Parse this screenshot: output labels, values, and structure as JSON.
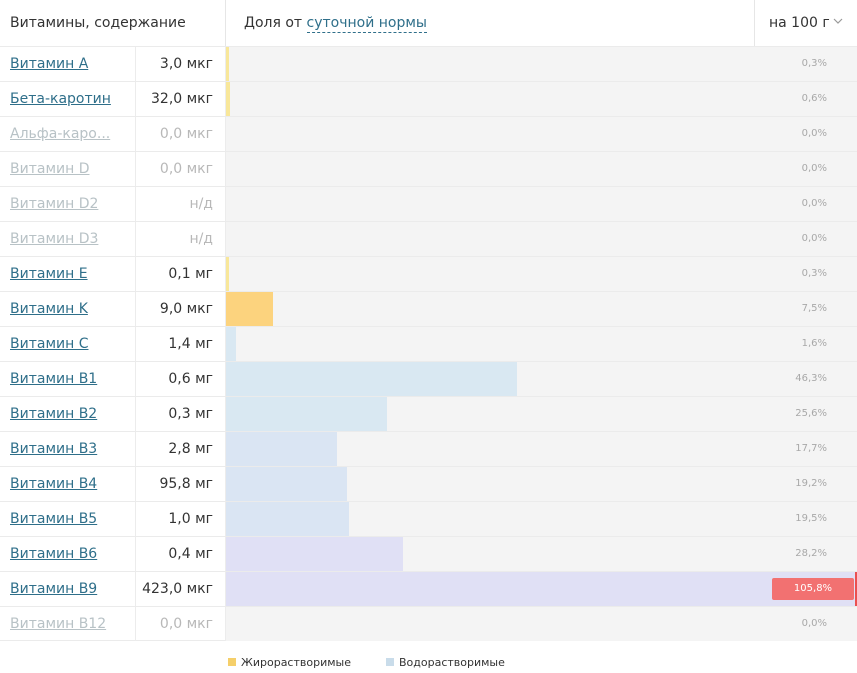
{
  "header": {
    "title": "Витамины, содержание",
    "share_prefix": "Доля от",
    "share_link": "суточной нормы",
    "per_label": "на 100 г"
  },
  "rows": [
    {
      "name": "Витамин A",
      "value": "3,0 мкг",
      "pct_label": "0,3%",
      "pct": 0.3,
      "kind": "fat",
      "dim": false
    },
    {
      "name": "Бета-каротин",
      "value": "32,0 мкг",
      "pct_label": "0,6%",
      "pct": 0.6,
      "kind": "fat",
      "dim": false
    },
    {
      "name": "Альфа-каро...",
      "value": "0,0 мкг",
      "pct_label": "0,0%",
      "pct": 0,
      "kind": "fat",
      "dim": true
    },
    {
      "name": "Витамин D",
      "value": "0,0 мкг",
      "pct_label": "0,0%",
      "pct": 0,
      "kind": "fat",
      "dim": true
    },
    {
      "name": "Витамин D2",
      "value": "н/д",
      "pct_label": "0,0%",
      "pct": 0,
      "kind": "fat",
      "dim": true
    },
    {
      "name": "Витамин D3",
      "value": "н/д",
      "pct_label": "0,0%",
      "pct": 0,
      "kind": "fat",
      "dim": true
    },
    {
      "name": "Витамин E",
      "value": "0,1 мг",
      "pct_label": "0,3%",
      "pct": 0.3,
      "kind": "fat",
      "dim": false
    },
    {
      "name": "Витамин K",
      "value": "9,0 мкг",
      "pct_label": "7,5%",
      "pct": 7.5,
      "kind": "fat-strong",
      "dim": false
    },
    {
      "name": "Витамин C",
      "value": "1,4 мг",
      "pct_label": "1,6%",
      "pct": 1.6,
      "kind": "water",
      "dim": false
    },
    {
      "name": "Витамин B1",
      "value": "0,6 мг",
      "pct_label": "46,3%",
      "pct": 46.3,
      "kind": "water",
      "dim": false
    },
    {
      "name": "Витамин B2",
      "value": "0,3 мг",
      "pct_label": "25,6%",
      "pct": 25.6,
      "kind": "water",
      "dim": false
    },
    {
      "name": "Витамин B3",
      "value": "2,8 мг",
      "pct_label": "17,7%",
      "pct": 17.7,
      "kind": "water2",
      "dim": false
    },
    {
      "name": "Витамин B4",
      "value": "95,8 мг",
      "pct_label": "19,2%",
      "pct": 19.2,
      "kind": "water2",
      "dim": false
    },
    {
      "name": "Витамин B5",
      "value": "1,0 мг",
      "pct_label": "19,5%",
      "pct": 19.5,
      "kind": "water2",
      "dim": false
    },
    {
      "name": "Витамин B6",
      "value": "0,4 мг",
      "pct_label": "28,2%",
      "pct": 28.2,
      "kind": "water3",
      "dim": false
    },
    {
      "name": "Витамин B9",
      "value": "423,0 мкг",
      "pct_label": "105,8%",
      "pct": 105.8,
      "kind": "water3",
      "dim": false
    },
    {
      "name": "Витамин B12",
      "value": "0,0 мкг",
      "pct_label": "0,0%",
      "pct": 0,
      "kind": "water3",
      "dim": true
    }
  ],
  "colors": {
    "fat": "#f8e79a",
    "fat-strong": "#fcd37e",
    "water": "#d9e8f2",
    "water2": "#dae5f3",
    "water3": "#e0e0f5",
    "over": "#f27171",
    "legend_fat": "#f5cf6a",
    "legend_water": "#c9dcea"
  },
  "legend": {
    "fat_label": "Жирорастворимые",
    "water_label": "Водорастворимые"
  }
}
